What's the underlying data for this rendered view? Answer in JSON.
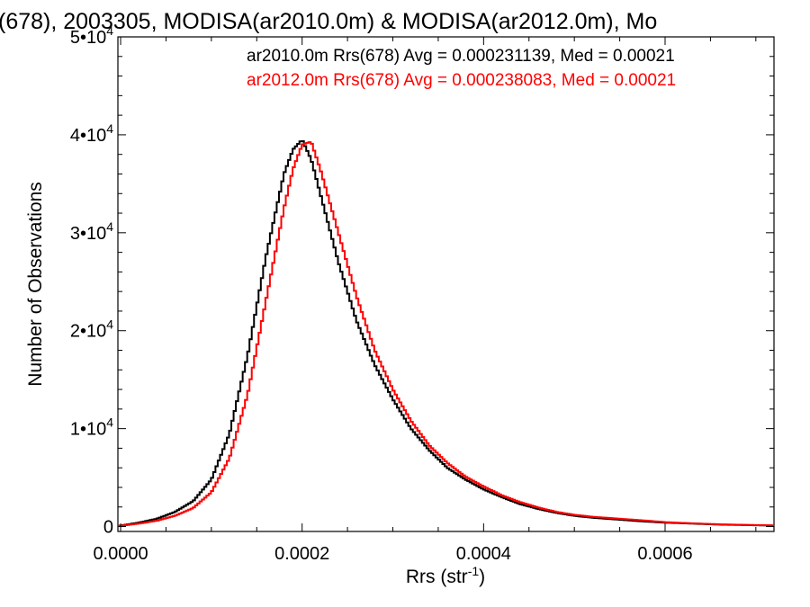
{
  "chart_data": {
    "type": "line",
    "title": "(678), 2003305, MODISA(ar2010.0m) & MODISA(ar2012.0m), Mo",
    "xlabel": "Rrs (str",
    "xlabel_sup": "-1",
    "xlabel_close": ")",
    "ylabel": "Number of Observations",
    "xlim": [
      -3e-06,
      0.00072
    ],
    "ylim": [
      -500,
      50000
    ],
    "x_ticks": [
      {
        "value": 0.0,
        "label": "0.0000"
      },
      {
        "value": 0.0002,
        "label": "0.0002"
      },
      {
        "value": 0.0004,
        "label": "0.0004"
      },
      {
        "value": 0.0006,
        "label": "0.0006"
      }
    ],
    "y_ticks": [
      {
        "value": 0,
        "base": "0",
        "exp": ""
      },
      {
        "value": 10000,
        "base": "1•10",
        "exp": "4"
      },
      {
        "value": 20000,
        "base": "2•10",
        "exp": "4"
      },
      {
        "value": 30000,
        "base": "3•10",
        "exp": "4"
      },
      {
        "value": 40000,
        "base": "4•10",
        "exp": "4"
      },
      {
        "value": 50000,
        "base": "5•10",
        "exp": "4"
      }
    ],
    "grid": false,
    "legend_position": "top-right",
    "legend": [
      {
        "text": "ar2010.0m Rrs(678) Avg = 0.000231139, Med = 0.00021",
        "color": "#000000"
      },
      {
        "text": "ar2012.0m Rrs(678) Avg = 0.000238083, Med = 0.00021",
        "color": "#ff0000"
      }
    ],
    "series": [
      {
        "color": "#000000",
        "style": "step",
        "points": [
          [
            0.0,
            100
          ],
          [
            2e-05,
            400
          ],
          [
            4e-05,
            800
          ],
          [
            6e-05,
            1500
          ],
          [
            8e-05,
            2600
          ],
          [
            0.0001,
            4800
          ],
          [
            0.00012,
            9500
          ],
          [
            0.00014,
            17500
          ],
          [
            0.00016,
            27500
          ],
          [
            0.00018,
            36000
          ],
          [
            0.00019,
            38500
          ],
          [
            0.0002,
            39500
          ],
          [
            0.00021,
            37500
          ],
          [
            0.00022,
            34000
          ],
          [
            0.00024,
            27000
          ],
          [
            0.00026,
            21000
          ],
          [
            0.00028,
            16500
          ],
          [
            0.0003,
            13000
          ],
          [
            0.00032,
            10000
          ],
          [
            0.00034,
            7800
          ],
          [
            0.00036,
            6000
          ],
          [
            0.00038,
            4800
          ],
          [
            0.0004,
            3800
          ],
          [
            0.00042,
            3000
          ],
          [
            0.00044,
            2300
          ],
          [
            0.00046,
            1800
          ],
          [
            0.00048,
            1400
          ],
          [
            0.0005,
            1100
          ],
          [
            0.00052,
            900
          ],
          [
            0.00055,
            700
          ],
          [
            0.00058,
            500
          ],
          [
            0.0006,
            400
          ],
          [
            0.00063,
            300
          ],
          [
            0.00066,
            200
          ],
          [
            0.00069,
            150
          ],
          [
            0.00072,
            100
          ]
        ]
      },
      {
        "color": "#ff0000",
        "style": "step",
        "points": [
          [
            0.0,
            80
          ],
          [
            2e-05,
            300
          ],
          [
            4e-05,
            600
          ],
          [
            6e-05,
            1100
          ],
          [
            8e-05,
            1900
          ],
          [
            0.0001,
            3500
          ],
          [
            0.00012,
            7000
          ],
          [
            0.00014,
            13500
          ],
          [
            0.00016,
            23000
          ],
          [
            0.00018,
            32500
          ],
          [
            0.00019,
            36500
          ],
          [
            0.0002,
            39000
          ],
          [
            0.00021,
            39300
          ],
          [
            0.00022,
            36500
          ],
          [
            0.00024,
            30000
          ],
          [
            0.00026,
            23500
          ],
          [
            0.00028,
            18000
          ],
          [
            0.0003,
            14000
          ],
          [
            0.00032,
            10800
          ],
          [
            0.00034,
            8300
          ],
          [
            0.00036,
            6500
          ],
          [
            0.00038,
            5100
          ],
          [
            0.0004,
            4100
          ],
          [
            0.00042,
            3200
          ],
          [
            0.00044,
            2500
          ],
          [
            0.00046,
            1950
          ],
          [
            0.00048,
            1500
          ],
          [
            0.0005,
            1200
          ],
          [
            0.00052,
            1000
          ],
          [
            0.00055,
            800
          ],
          [
            0.00058,
            600
          ],
          [
            0.0006,
            450
          ],
          [
            0.00063,
            330
          ],
          [
            0.00066,
            230
          ],
          [
            0.00069,
            170
          ],
          [
            0.00072,
            120
          ]
        ]
      }
    ]
  }
}
